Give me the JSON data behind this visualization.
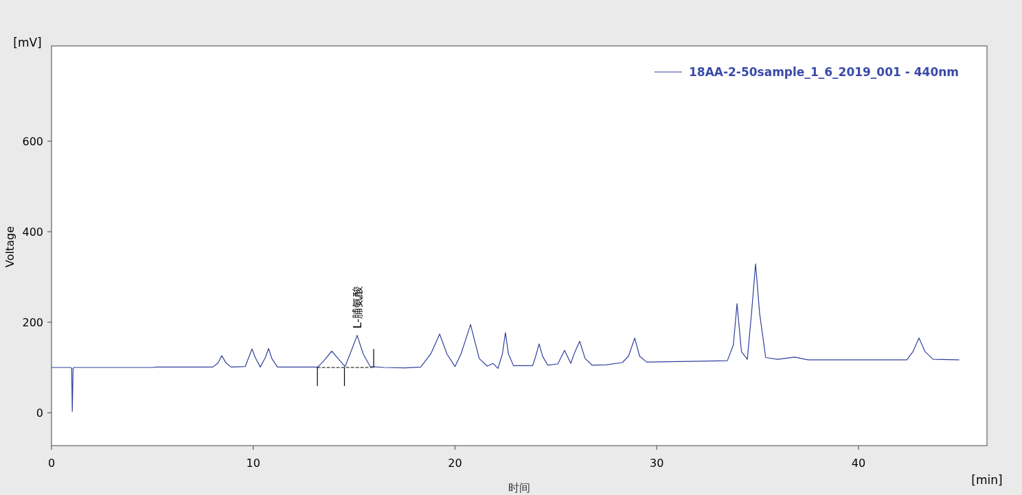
{
  "chart_data": {
    "type": "line",
    "xlabel": "时间",
    "ylabel": "Voltage",
    "xlim": [
      0,
      46.37
    ],
    "ylim": [
      -72.7,
      810.6
    ],
    "xticks": [
      0,
      10,
      20,
      30,
      40
    ],
    "yticks": [
      0,
      200,
      400,
      600
    ],
    "grid": false,
    "legend": "top right",
    "annotations": [
      "[mV]",
      "[min]",
      {
        "text": "L-脯氨酸",
        "x": 15.15,
        "y": 171
      }
    ],
    "series": [
      {
        "name": "18AA-2-50sample_1_6_2019_001 - 440nm",
        "color": "#2f3f9c",
        "type": "line",
        "x": [
          0,
          0.95,
          1.0,
          1.03,
          1.07,
          1.12,
          5,
          5.2,
          8.0,
          8.25,
          8.44,
          8.65,
          8.9,
          9.6,
          9.8,
          9.94,
          10.1,
          10.35,
          10.6,
          10.76,
          10.92,
          11.2,
          13.2,
          13.5,
          13.89,
          14.2,
          14.55,
          14.8,
          15.15,
          15.45,
          15.8,
          16.5,
          17.5,
          18.3,
          18.8,
          19.24,
          19.6,
          20.0,
          20.3,
          20.77,
          21.2,
          21.6,
          21.89,
          22.13,
          22.35,
          22.5,
          22.65,
          22.9,
          23.85,
          24.0,
          24.17,
          24.35,
          24.6,
          25.1,
          25.43,
          25.74,
          25.95,
          26.18,
          26.45,
          26.8,
          27.5,
          28.3,
          28.6,
          28.91,
          29.15,
          29.5,
          33.5,
          33.8,
          33.98,
          34.2,
          34.49,
          34.7,
          34.9,
          35.1,
          35.4,
          36.0,
          36.84,
          37.5,
          42.4,
          42.7,
          43.0,
          43.3,
          43.7,
          44.98
        ],
        "values": [
          100,
          100,
          98,
          3,
          98,
          100,
          100,
          101,
          101,
          110,
          126,
          110,
          101,
          102,
          125,
          141,
          122,
          101,
          122,
          142,
          120,
          101,
          101,
          115,
          136,
          120,
          102,
          130,
          171,
          130,
          102,
          100,
          99,
          101,
          130,
          174,
          130,
          102,
          130,
          195,
          120,
          103,
          109,
          98,
          130,
          177,
          130,
          104,
          104,
          125,
          152,
          124,
          105,
          108,
          138,
          109,
          135,
          158,
          120,
          105,
          106,
          111,
          125,
          165,
          125,
          112,
          115,
          150,
          241,
          135,
          118,
          220,
          329,
          220,
          122,
          118,
          123,
          117,
          117,
          135,
          165,
          135,
          118,
          117
        ]
      },
      {
        "color": "#000000",
        "type": "line",
        "line_style": "dashed",
        "x": [
          13.18,
          15.9
        ],
        "values": [
          100,
          100
        ]
      },
      {
        "color": "#000000",
        "type": "line",
        "x": [
          13.18,
          13.18
        ],
        "values": [
          60,
          100
        ]
      },
      {
        "color": "#000000",
        "type": "line",
        "x": [
          14.52,
          14.52
        ],
        "values": [
          60,
          100
        ]
      },
      {
        "color": "#000000",
        "type": "line",
        "x": [
          15.97,
          15.97
        ],
        "values": [
          100,
          140
        ]
      }
    ]
  }
}
